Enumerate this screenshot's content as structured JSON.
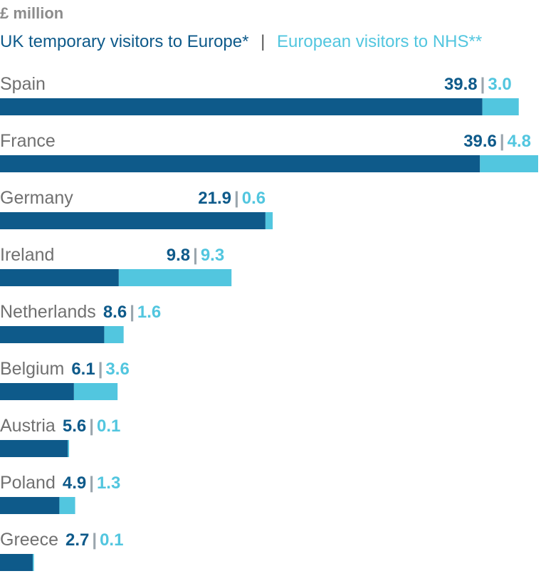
{
  "chart_data": {
    "type": "bar",
    "stacked": true,
    "orientation": "horizontal",
    "unit": "£ million",
    "separator": "|",
    "categories": [
      "Spain",
      "France",
      "Germany",
      "Ireland",
      "Netherlands",
      "Belgium",
      "Austria",
      "Poland",
      "Greece"
    ],
    "series": [
      {
        "name": "UK temporary visitors to Europe*",
        "color": "#0e5a8a",
        "values": [
          39.8,
          39.6,
          21.9,
          9.8,
          8.6,
          6.1,
          5.6,
          4.9,
          2.7
        ],
        "labels": [
          "39.8",
          "39.6",
          "21.9",
          "9.8",
          "8.6",
          "6.1",
          "5.6",
          "4.9",
          "2.7"
        ]
      },
      {
        "name": "European visitors to NHS**",
        "color": "#52c6df",
        "values": [
          3.0,
          4.8,
          0.6,
          9.3,
          1.6,
          3.6,
          0.1,
          1.3,
          0.1
        ],
        "labels": [
          "3.0",
          "4.8",
          "0.6",
          "9.3",
          "1.6",
          "3.6",
          "0.1",
          "1.3",
          "0.1"
        ]
      }
    ],
    "legend_separator": "|",
    "xlim": [
      0,
      44.4
    ]
  }
}
